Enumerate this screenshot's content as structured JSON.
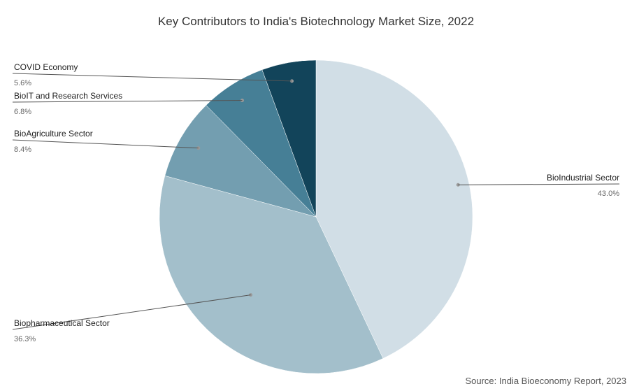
{
  "chart_data": {
    "type": "pie",
    "title": "Key Contributors to India's Biotechnology Market Size, 2022",
    "source": "Source: India Bioeconomy Report, 2023",
    "slices": [
      {
        "label": "BioIndustrial Sector",
        "value": 43.0,
        "display": "43.0%",
        "color": "#d1dee6"
      },
      {
        "label": "Biopharmaceutical Sector",
        "value": 36.3,
        "display": "36.3%",
        "color": "#a3bfcb"
      },
      {
        "label": "BioAgriculture Sector",
        "value": 8.4,
        "display": "8.4%",
        "color": "#739eb0"
      },
      {
        "label": "BioIT and Research Services",
        "value": 6.8,
        "display": "6.8%",
        "color": "#467f96"
      },
      {
        "label": "COVID Economy",
        "value": 5.6,
        "display": "5.6%",
        "color": "#12445a"
      }
    ]
  }
}
